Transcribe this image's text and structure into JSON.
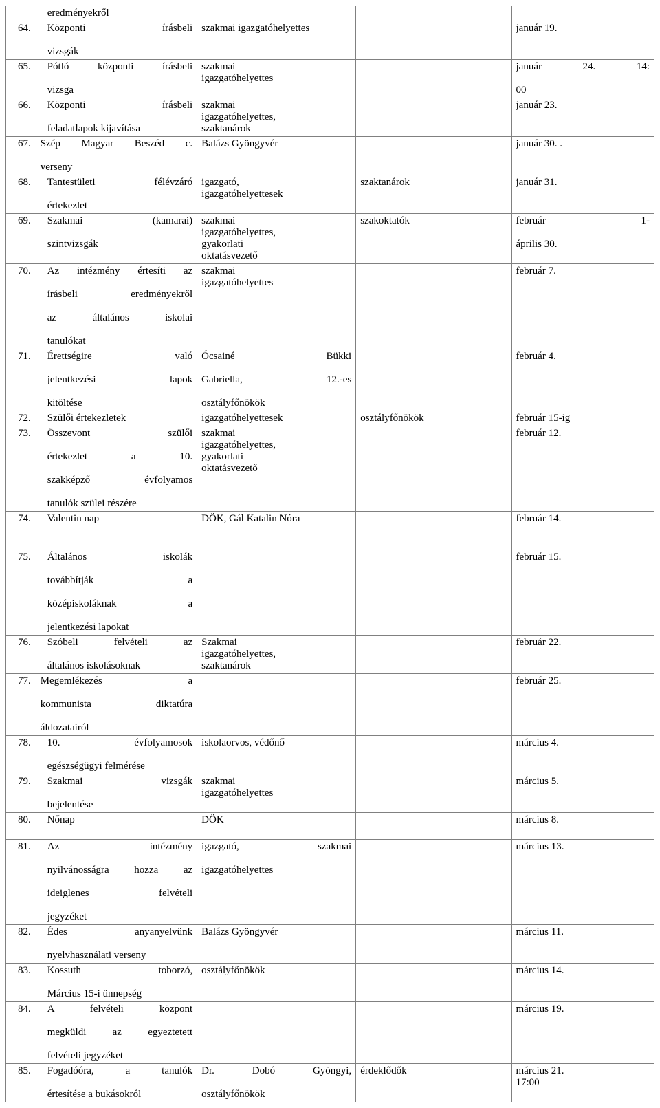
{
  "rows": [
    {
      "n": "",
      "c2": [
        "eredményekről"
      ],
      "c3": [],
      "c4": [],
      "c5": [],
      "cls": "indent"
    },
    {
      "n": "64.",
      "c2": [
        "Központi írásbeli",
        "vizsgák"
      ],
      "c2j": [
        true,
        false
      ],
      "c3": [
        "szakmai igazgatóhelyettes"
      ],
      "c4": [],
      "c5": [
        "január 19."
      ],
      "cls": "indent"
    },
    {
      "n": "65.",
      "c2": [
        "Pótló központi írásbeli",
        "vizsga"
      ],
      "c2j": [
        true,
        false
      ],
      "c3": [
        "szakmai",
        "igazgatóhelyettes"
      ],
      "c4": [],
      "c5": [
        "január 24. 14:",
        "00"
      ],
      "c5j": [
        true,
        false
      ],
      "cls": "indent"
    },
    {
      "n": "66.",
      "c2": [
        "Központi írásbeli",
        "feladatlapok kijavítása"
      ],
      "c2j": [
        true,
        false
      ],
      "c3": [
        "szakmai",
        "igazgatóhelyettes,",
        "szaktanárok"
      ],
      "c4": [],
      "c5": [
        "január 23."
      ],
      "cls": "indent"
    },
    {
      "n": "67.",
      "c2": [
        "Szép Magyar Beszéd c.",
        "verseny"
      ],
      "c2j": [
        true,
        false
      ],
      "c3": [
        "Balázs Gyöngyvér"
      ],
      "c4": [],
      "c5": [
        "január 30. ."
      ],
      "cls": "indent-sm"
    },
    {
      "n": "68.",
      "c2": [
        "Tantestületi félévzáró",
        "értekezlet"
      ],
      "c2j": [
        true,
        false
      ],
      "c3": [
        "igazgató,",
        "igazgatóhelyettesek"
      ],
      "c4": [
        "szaktanárok"
      ],
      "c5": [
        "január 31."
      ],
      "cls": "indent"
    },
    {
      "n": "69.",
      "c2": [
        "Szakmai (kamarai)",
        "szintvizsgák"
      ],
      "c2j": [
        true,
        false
      ],
      "c3": [
        "szakmai",
        "igazgatóhelyettes,",
        "gyakorlati",
        "oktatásvezető"
      ],
      "c4": [
        "szakoktatók"
      ],
      "c5": [
        "február 1-",
        "április 30."
      ],
      "c5j": [
        true,
        false
      ],
      "cls": "indent"
    },
    {
      "n": "70.",
      "c2": [
        "Az intézmény értesíti az",
        "írásbeli eredményekről",
        "az általános iskolai",
        "tanulókat"
      ],
      "c2j": [
        true,
        true,
        true,
        false
      ],
      "c3": [
        "szakmai",
        "igazgatóhelyettes"
      ],
      "c4": [],
      "c5": [
        "február 7."
      ],
      "cls": "indent"
    },
    {
      "n": "71.",
      "c2": [
        "Érettségire való",
        "jelentkezési lapok",
        "kitöltése"
      ],
      "c2j": [
        true,
        true,
        false
      ],
      "c3": [
        "Ócsainé Bükki",
        "Gabriella, 12.-es",
        "osztályfőnökök"
      ],
      "c3j": [
        true,
        true,
        false
      ],
      "c4": [],
      "c5": [
        "február 4."
      ],
      "cls": "indent"
    },
    {
      "n": "72.",
      "c2": [
        "Szülői értekezletek"
      ],
      "c3": [
        "igazgatóhelyettesek"
      ],
      "c4": [
        "osztályfőnökök"
      ],
      "c5": [
        "február 15-ig"
      ],
      "cls": "indent"
    },
    {
      "n": "73.",
      "c2": [
        "Összevont szülői",
        "értekezlet a 10.",
        "szakképző évfolyamos",
        "tanulók szülei részére"
      ],
      "c2j": [
        true,
        true,
        true,
        false
      ],
      "c3": [
        "szakmai",
        "igazgatóhelyettes,",
        "gyakorlati",
        "oktatásvezető"
      ],
      "c4": [],
      "c5": [
        "február 12."
      ],
      "cls": "indent"
    },
    {
      "n": "74.",
      "c2": [
        "Valentin nap",
        " ",
        " "
      ],
      "c3": [
        "DÖK, Gál Katalin Nóra"
      ],
      "c4": [],
      "c5": [
        "február 14."
      ],
      "cls": "indent"
    },
    {
      "n": "75.",
      "c2": [
        "Általános iskolák",
        "továbbítják a",
        "középiskoláknak a",
        "jelentkezési lapokat"
      ],
      "c2j": [
        true,
        true,
        true,
        false
      ],
      "c3": [],
      "c4": [],
      "c5": [
        "február 15."
      ],
      "cls": "indent"
    },
    {
      "n": "76.",
      "c2": [
        "Szóbeli felvételi az",
        "általános iskolásoknak"
      ],
      "c2j": [
        true,
        false
      ],
      "c3": [
        "Szakmai",
        "igazgatóhelyettes,",
        "szaktanárok"
      ],
      "c4": [],
      "c5": [
        "február 22."
      ],
      "cls": "indent"
    },
    {
      "n": "77.",
      "c2": [
        "Megemlékezés a",
        "kommunista diktatúra",
        "áldozatairól"
      ],
      "c2j": [
        true,
        true,
        false
      ],
      "c3": [],
      "c4": [],
      "c5": [
        "február 25."
      ],
      "cls": "indent-sm"
    },
    {
      "n": "78.",
      "c2": [
        "10. évfolyamosok",
        "egészségügyi felmérése"
      ],
      "c2j": [
        true,
        false
      ],
      "c3": [
        "iskolaorvos, védőnő"
      ],
      "c4": [],
      "c5": [
        "március 4."
      ],
      "cls": "indent"
    },
    {
      "n": "79.",
      "c2": [
        "Szakmai vizsgák",
        "bejelentése"
      ],
      "c2j": [
        true,
        false
      ],
      "c3": [
        "szakmai",
        "igazgatóhelyettes"
      ],
      "c4": [],
      "c5": [
        "március 5."
      ],
      "cls": "indent"
    },
    {
      "n": "80.",
      "c2": [
        "Nőnap",
        " "
      ],
      "c3": [
        "DÖK"
      ],
      "c4": [],
      "c5": [
        "március 8."
      ],
      "cls": "indent"
    },
    {
      "n": "81.",
      "c2": [
        "Az intézmény",
        "nyilvánosságra hozza az",
        "ideiglenes felvételi",
        "jegyzéket"
      ],
      "c2j": [
        true,
        true,
        true,
        false
      ],
      "c3": [
        "igazgató, szakmai",
        "igazgatóhelyettes"
      ],
      "c3j": [
        true,
        false
      ],
      "c4": [],
      "c5": [
        "március 13."
      ],
      "cls": "indent"
    },
    {
      "n": "82.",
      "c2": [
        "Édes anyanyelvünk",
        "nyelvhasználati verseny"
      ],
      "c2j": [
        true,
        false
      ],
      "c3": [
        "Balázs Gyöngyvér"
      ],
      "c4": [],
      "c5": [
        "március 11."
      ],
      "cls": "indent"
    },
    {
      "n": "83.",
      "c2": [
        "Kossuth toborzó,",
        "Március 15-i ünnepség"
      ],
      "c2j": [
        true,
        false
      ],
      "c3": [
        "osztályfőnökök"
      ],
      "c4": [],
      "c5": [
        "március 14."
      ],
      "cls": "indent"
    },
    {
      "n": "84.",
      "c2": [
        "A felvételi központ",
        "megküldi az egyeztetett",
        "felvételi jegyzéket"
      ],
      "c2j": [
        true,
        true,
        false
      ],
      "c3": [],
      "c4": [],
      "c5": [
        "március 19."
      ],
      "cls": "indent"
    },
    {
      "n": "85.",
      "c2": [
        "Fogadóóra, a tanulók",
        "értesítése a bukásokról"
      ],
      "c2j": [
        true,
        false
      ],
      "c3": [
        "Dr. Dobó Gyöngyi,",
        "osztályfőnökök"
      ],
      "c3j": [
        true,
        false
      ],
      "c4": [
        "érdeklődők"
      ],
      "c5": [
        "március 21.",
        "17:00"
      ],
      "cls": "indent"
    }
  ]
}
